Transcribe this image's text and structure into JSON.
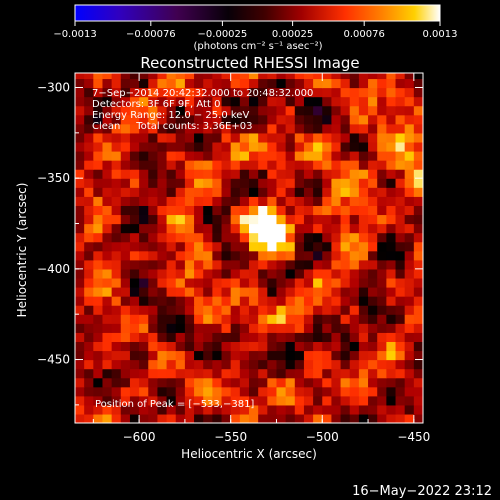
{
  "chart_data": {
    "type": "heatmap",
    "title": "Reconstructed RHESSI Image",
    "xlabel": "Heliocentric X (arcsec)",
    "ylabel": "Heliocentric Y (arcsec)",
    "xlim": [
      -635,
      -445
    ],
    "ylim": [
      -485,
      -292
    ],
    "x_ticks": [
      {
        "value": -600,
        "label": "−600"
      },
      {
        "value": -550,
        "label": "−550"
      },
      {
        "value": -500,
        "label": "−500"
      },
      {
        "value": -450,
        "label": "−450"
      }
    ],
    "y_ticks": [
      {
        "value": -300,
        "label": "−300"
      },
      {
        "value": -350,
        "label": "−350"
      },
      {
        "value": -400,
        "label": "−400"
      },
      {
        "value": -450,
        "label": "−450"
      }
    ],
    "colorbar": {
      "min": -0.0013,
      "max": 0.0013,
      "ticks": [
        {
          "value": -0.0013,
          "label": "−0.0013"
        },
        {
          "value": -0.00076,
          "label": "−0.00076"
        },
        {
          "value": -0.00025,
          "label": "−0.00025"
        },
        {
          "value": 0.00025,
          "label": "0.00025"
        },
        {
          "value": 0.00076,
          "label": "0.00076"
        },
        {
          "value": 0.0013,
          "label": "0.0013"
        }
      ],
      "units": "(photons cm⁻² s⁻¹ asec⁻²)",
      "colormap": [
        "#0000ff",
        "#4000a0",
        "#400040",
        "#000000",
        "#600000",
        "#b00000",
        "#ff3000",
        "#ff8000",
        "#ffd000",
        "#ffffff"
      ]
    },
    "annotations": [
      "7−Sep−2014 20:42:32.000 to 20:48:32.000",
      "Detectors: 3F 6F 9F, Att 0",
      "Energy Range: 12.0 − 25.0 keV",
      "Clean     Total counts: 3.36E+03"
    ],
    "peak_label": "Position of Peak = [−533,−381]",
    "peak": {
      "x": -533,
      "y": -381,
      "value": 0.0013
    }
  },
  "footer_date": "16−May−2022 23:12"
}
